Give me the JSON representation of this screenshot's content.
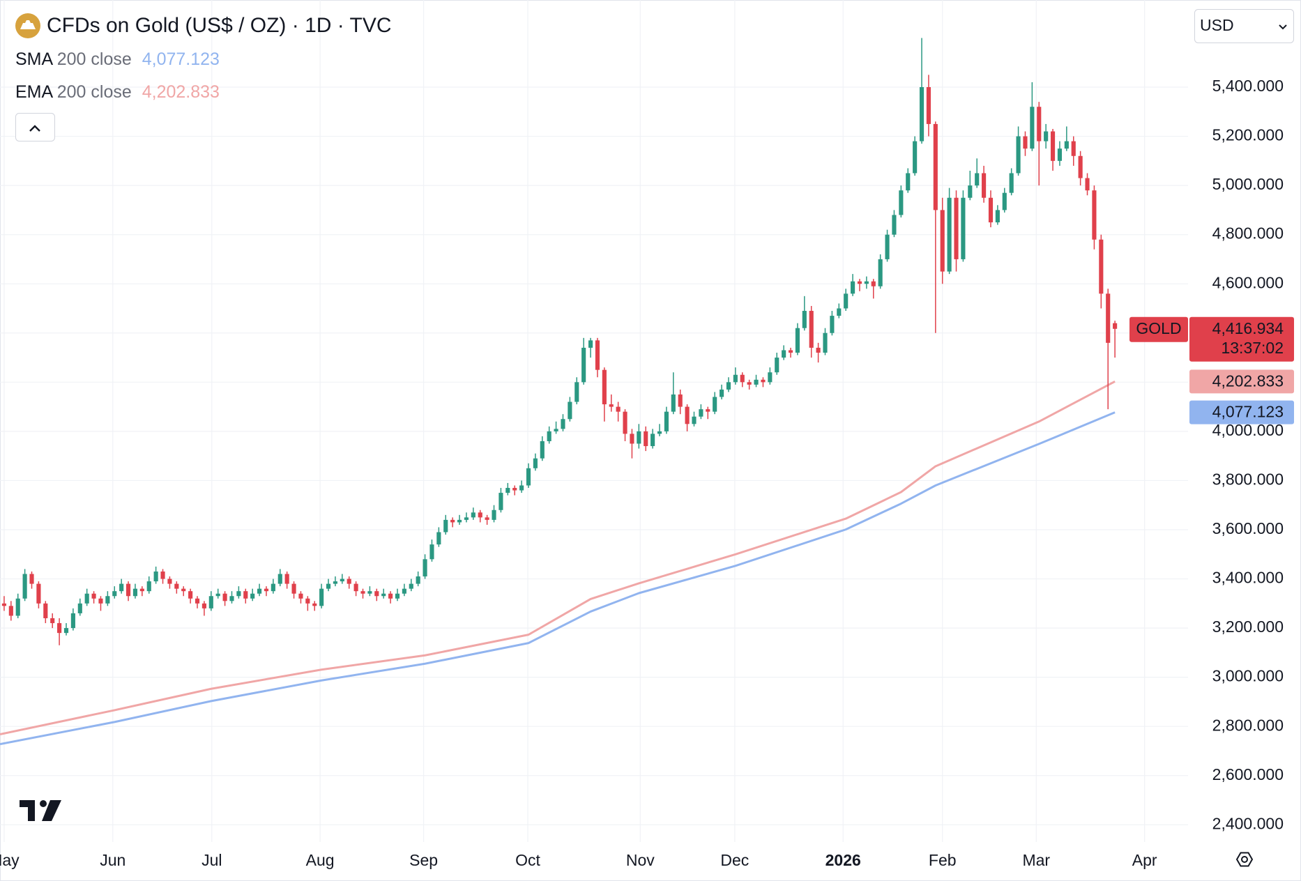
{
  "chart_data": {
    "type": "candlestick",
    "title": "CFDs on Gold (US$ / OZ) · 1D · TVC",
    "currency": "USD",
    "up_color": "#2b9882",
    "down_color": "#e0404b",
    "grid": true,
    "xlim": [
      -0.6,
      171.6
    ],
    "ylim": [
      2330,
      5726
    ],
    "xticks": [
      {
        "value": 0,
        "label": "May"
      },
      {
        "value": 15.75,
        "label": "Jun"
      },
      {
        "value": 30.1,
        "label": "Jul"
      },
      {
        "value": 45.8,
        "label": "Aug"
      },
      {
        "value": 60.8,
        "label": "Sep"
      },
      {
        "value": 75.9,
        "label": "Oct"
      },
      {
        "value": 92.2,
        "label": "Nov"
      },
      {
        "value": 105.9,
        "label": "Dec"
      },
      {
        "value": 121.6,
        "label": "2026"
      },
      {
        "value": 136,
        "label": "Feb"
      },
      {
        "value": 149.6,
        "label": "Mar"
      },
      {
        "value": 165.3,
        "label": "Apr"
      }
    ],
    "yticks": [
      {
        "value": 2400,
        "label": "2,400.000"
      },
      {
        "value": 2600,
        "label": "2,600.000"
      },
      {
        "value": 2800,
        "label": "2,800.000"
      },
      {
        "value": 3000,
        "label": "3,000.000"
      },
      {
        "value": 3200,
        "label": "3,200.000"
      },
      {
        "value": 3400,
        "label": "3,400.000"
      },
      {
        "value": 3600,
        "label": "3,600.000"
      },
      {
        "value": 3800,
        "label": "3,800.000"
      },
      {
        "value": 4000,
        "label": "4,000.000"
      },
      {
        "value": 4200,
        "label": "4,200.000"
      },
      {
        "value": 4400,
        "label": "4,400.000"
      },
      {
        "value": 4600,
        "label": "4,600.000"
      },
      {
        "value": 4800,
        "label": "4,800.000"
      },
      {
        "value": 5000,
        "label": "5,000.000"
      },
      {
        "value": 5200,
        "label": "5,200.000"
      },
      {
        "value": 5400,
        "label": "5,400.000"
      }
    ],
    "ohlc": [
      [
        3300,
        3330,
        3270,
        3290
      ],
      [
        3290,
        3310,
        3230,
        3250
      ],
      [
        3250,
        3340,
        3240,
        3320
      ],
      [
        3320,
        3440,
        3310,
        3420
      ],
      [
        3420,
        3430,
        3360,
        3380
      ],
      [
        3380,
        3390,
        3280,
        3300
      ],
      [
        3300,
        3310,
        3220,
        3240
      ],
      [
        3240,
        3260,
        3200,
        3220
      ],
      [
        3220,
        3240,
        3130,
        3180
      ],
      [
        3180,
        3220,
        3170,
        3200
      ],
      [
        3200,
        3280,
        3190,
        3260
      ],
      [
        3260,
        3320,
        3250,
        3300
      ],
      [
        3300,
        3360,
        3290,
        3340
      ],
      [
        3340,
        3350,
        3300,
        3320
      ],
      [
        3320,
        3330,
        3270,
        3300
      ],
      [
        3300,
        3350,
        3290,
        3330
      ],
      [
        3330,
        3370,
        3320,
        3350
      ],
      [
        3350,
        3400,
        3340,
        3380
      ],
      [
        3380,
        3390,
        3310,
        3330
      ],
      [
        3330,
        3380,
        3320,
        3360
      ],
      [
        3360,
        3370,
        3330,
        3350
      ],
      [
        3350,
        3410,
        3340,
        3390
      ],
      [
        3390,
        3450,
        3380,
        3430
      ],
      [
        3430,
        3440,
        3380,
        3400
      ],
      [
        3400,
        3410,
        3360,
        3380
      ],
      [
        3380,
        3390,
        3340,
        3360
      ],
      [
        3360,
        3370,
        3330,
        3350
      ],
      [
        3350,
        3360,
        3300,
        3320
      ],
      [
        3320,
        3330,
        3280,
        3300
      ],
      [
        3300,
        3310,
        3250,
        3280
      ],
      [
        3280,
        3350,
        3270,
        3330
      ],
      [
        3330,
        3360,
        3320,
        3340
      ],
      [
        3340,
        3350,
        3290,
        3310
      ],
      [
        3310,
        3350,
        3300,
        3330
      ],
      [
        3330,
        3370,
        3320,
        3350
      ],
      [
        3350,
        3360,
        3300,
        3320
      ],
      [
        3320,
        3360,
        3310,
        3340
      ],
      [
        3340,
        3380,
        3330,
        3360
      ],
      [
        3360,
        3370,
        3330,
        3350
      ],
      [
        3350,
        3400,
        3340,
        3380
      ],
      [
        3380,
        3440,
        3370,
        3420
      ],
      [
        3420,
        3430,
        3360,
        3380
      ],
      [
        3380,
        3390,
        3320,
        3340
      ],
      [
        3340,
        3350,
        3300,
        3320
      ],
      [
        3320,
        3330,
        3270,
        3300
      ],
      [
        3300,
        3310,
        3270,
        3290
      ],
      [
        3290,
        3380,
        3280,
        3360
      ],
      [
        3360,
        3400,
        3350,
        3380
      ],
      [
        3380,
        3410,
        3370,
        3390
      ],
      [
        3390,
        3420,
        3380,
        3400
      ],
      [
        3400,
        3410,
        3360,
        3380
      ],
      [
        3380,
        3390,
        3330,
        3350
      ],
      [
        3350,
        3360,
        3320,
        3340
      ],
      [
        3340,
        3370,
        3330,
        3350
      ],
      [
        3350,
        3360,
        3310,
        3330
      ],
      [
        3330,
        3360,
        3320,
        3340
      ],
      [
        3340,
        3350,
        3300,
        3320
      ],
      [
        3320,
        3360,
        3310,
        3340
      ],
      [
        3340,
        3380,
        3330,
        3360
      ],
      [
        3360,
        3400,
        3350,
        3380
      ],
      [
        3380,
        3430,
        3370,
        3410
      ],
      [
        3410,
        3500,
        3400,
        3480
      ],
      [
        3480,
        3560,
        3470,
        3540
      ],
      [
        3540,
        3610,
        3530,
        3590
      ],
      [
        3590,
        3660,
        3580,
        3640
      ],
      [
        3640,
        3650,
        3610,
        3630
      ],
      [
        3630,
        3660,
        3620,
        3640
      ],
      [
        3640,
        3670,
        3630,
        3650
      ],
      [
        3650,
        3690,
        3640,
        3670
      ],
      [
        3670,
        3680,
        3630,
        3650
      ],
      [
        3650,
        3660,
        3620,
        3640
      ],
      [
        3640,
        3700,
        3630,
        3680
      ],
      [
        3680,
        3770,
        3670,
        3750
      ],
      [
        3750,
        3790,
        3740,
        3770
      ],
      [
        3770,
        3780,
        3740,
        3760
      ],
      [
        3760,
        3800,
        3750,
        3780
      ],
      [
        3780,
        3870,
        3770,
        3850
      ],
      [
        3850,
        3910,
        3840,
        3890
      ],
      [
        3890,
        3980,
        3880,
        3960
      ],
      [
        3960,
        4020,
        3950,
        4000
      ],
      [
        4000,
        4040,
        3990,
        4010
      ],
      [
        4010,
        4070,
        4000,
        4050
      ],
      [
        4050,
        4140,
        4040,
        4120
      ],
      [
        4120,
        4220,
        4110,
        4200
      ],
      [
        4200,
        4380,
        4190,
        4340
      ],
      [
        4340,
        4380,
        4300,
        4370
      ],
      [
        4370,
        4380,
        4220,
        4250
      ],
      [
        4250,
        4260,
        4040,
        4110
      ],
      [
        4110,
        4150,
        4080,
        4100
      ],
      [
        4100,
        4120,
        4040,
        4080
      ],
      [
        4080,
        4090,
        3960,
        3990
      ],
      [
        3990,
        4010,
        3890,
        3950
      ],
      [
        3950,
        4030,
        3930,
        4000
      ],
      [
        4000,
        4020,
        3920,
        3940
      ],
      [
        3940,
        4010,
        3930,
        3990
      ],
      [
        3990,
        4030,
        3980,
        4000
      ],
      [
        4000,
        4100,
        3990,
        4080
      ],
      [
        4080,
        4240,
        4070,
        4150
      ],
      [
        4150,
        4170,
        4070,
        4100
      ],
      [
        4100,
        4110,
        4000,
        4030
      ],
      [
        4030,
        4080,
        4020,
        4060
      ],
      [
        4060,
        4110,
        4050,
        4090
      ],
      [
        4090,
        4100,
        4050,
        4080
      ],
      [
        4080,
        4160,
        4070,
        4140
      ],
      [
        4140,
        4190,
        4130,
        4170
      ],
      [
        4170,
        4220,
        4160,
        4200
      ],
      [
        4200,
        4260,
        4190,
        4230
      ],
      [
        4230,
        4240,
        4180,
        4200
      ],
      [
        4200,
        4210,
        4170,
        4190
      ],
      [
        4190,
        4230,
        4180,
        4210
      ],
      [
        4210,
        4220,
        4180,
        4200
      ],
      [
        4200,
        4260,
        4190,
        4240
      ],
      [
        4240,
        4320,
        4230,
        4300
      ],
      [
        4300,
        4350,
        4290,
        4330
      ],
      [
        4330,
        4340,
        4300,
        4320
      ],
      [
        4320,
        4440,
        4310,
        4420
      ],
      [
        4420,
        4550,
        4410,
        4490
      ],
      [
        4490,
        4510,
        4300,
        4340
      ],
      [
        4340,
        4360,
        4280,
        4320
      ],
      [
        4320,
        4420,
        4310,
        4400
      ],
      [
        4400,
        4490,
        4390,
        4470
      ],
      [
        4470,
        4520,
        4460,
        4500
      ],
      [
        4500,
        4580,
        4490,
        4560
      ],
      [
        4560,
        4640,
        4550,
        4610
      ],
      [
        4610,
        4620,
        4570,
        4600
      ],
      [
        4600,
        4630,
        4580,
        4610
      ],
      [
        4610,
        4620,
        4540,
        4590
      ],
      [
        4590,
        4720,
        4580,
        4700
      ],
      [
        4700,
        4820,
        4690,
        4800
      ],
      [
        4800,
        4900,
        4790,
        4880
      ],
      [
        4880,
        5000,
        4870,
        4980
      ],
      [
        4980,
        5070,
        4970,
        5050
      ],
      [
        5050,
        5200,
        5040,
        5180
      ],
      [
        5180,
        5600,
        5170,
        5400
      ],
      [
        5400,
        5450,
        5200,
        5250
      ],
      [
        5250,
        5260,
        4400,
        4900
      ],
      [
        4900,
        4950,
        4600,
        4650
      ],
      [
        4650,
        4990,
        4640,
        4950
      ],
      [
        4950,
        4980,
        4650,
        4700
      ],
      [
        4700,
        4980,
        4690,
        4950
      ],
      [
        4950,
        5060,
        4940,
        5000
      ],
      [
        5000,
        5110,
        4990,
        5050
      ],
      [
        5050,
        5080,
        4930,
        4950
      ],
      [
        4950,
        4980,
        4830,
        4850
      ],
      [
        4850,
        4920,
        4840,
        4900
      ],
      [
        4900,
        4990,
        4890,
        4970
      ],
      [
        4970,
        5070,
        4960,
        5050
      ],
      [
        5050,
        5240,
        5040,
        5200
      ],
      [
        5200,
        5220,
        5120,
        5150
      ],
      [
        5150,
        5420,
        5140,
        5320
      ],
      [
        5320,
        5340,
        5000,
        5180
      ],
      [
        5180,
        5250,
        5150,
        5220
      ],
      [
        5220,
        5230,
        5060,
        5100
      ],
      [
        5100,
        5180,
        5080,
        5150
      ],
      [
        5150,
        5240,
        5140,
        5180
      ],
      [
        5180,
        5200,
        5080,
        5120
      ],
      [
        5120,
        5140,
        5000,
        5030
      ],
      [
        5030,
        5050,
        4960,
        4980
      ],
      [
        4980,
        5000,
        4740,
        4780
      ],
      [
        4780,
        4800,
        4500,
        4560
      ],
      [
        4560,
        4580,
        4090,
        4360
      ],
      [
        4440,
        4450,
        4300,
        4416.934
      ]
    ],
    "last_price": {
      "label": "GOLD",
      "value": 4416.934,
      "value_label": "4,416.934",
      "countdown": "13:37:02",
      "color": "#e0404b"
    },
    "series": [
      {
        "name": "SMA",
        "params": "200 close",
        "color": "#91b4ef",
        "badge_text_color": "#131722",
        "value_label": "4,077.123",
        "x": [
          -0.6,
          16,
          30,
          46,
          61,
          76,
          85,
          92,
          106,
          122,
          130,
          135,
          150,
          161
        ],
        "values": [
          2728,
          2818,
          2903,
          2987,
          3055,
          3139,
          3267,
          3342,
          3453,
          3601,
          3706,
          3780,
          3949,
          4077.123
        ]
      },
      {
        "name": "EMA",
        "params": "200 close",
        "color": "#f0a6a6",
        "badge_text_color": "#131722",
        "value_label": "4,202.833",
        "x": [
          -0.6,
          16,
          30,
          46,
          61,
          76,
          85,
          92,
          106,
          122,
          130,
          135,
          150,
          161
        ],
        "values": [
          2768,
          2866,
          2953,
          3031,
          3089,
          3173,
          3318,
          3382,
          3500,
          3645,
          3753,
          3858,
          4040,
          4202.833
        ]
      }
    ]
  }
}
